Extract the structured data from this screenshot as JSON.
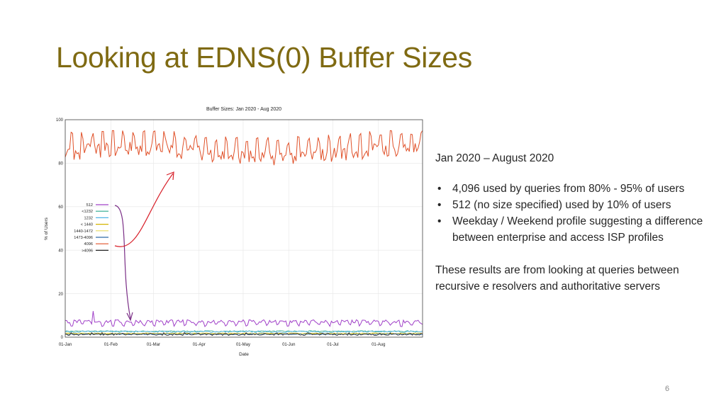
{
  "slide": {
    "title": "Looking at EDNS(0) Buffer Sizes",
    "page_number": "6",
    "subtitle": "Jan 2020 – August 2020",
    "bullets": [
      "4,096 used by queries from 80% - 95% of users",
      "512 (no size specified) used by 10% of users",
      "Weekday / Weekend profile suggesting a difference between enterprise and access ISP profiles"
    ],
    "note": "These results are from looking at queries between recursive e resolvers and authoritative servers"
  },
  "chart_data": {
    "type": "line",
    "title": "Buffer Sizes: Jan 2020 - Aug 2020",
    "xlabel": "Date",
    "ylabel": "% of Users",
    "x_start": "2020-01-01",
    "x_end": "2020-08-31",
    "xlim_days": [
      0,
      243
    ],
    "ylim": [
      0,
      100
    ],
    "yticks": [
      0,
      20,
      40,
      60,
      80,
      100
    ],
    "xticks": [
      {
        "label": "01-Jan",
        "day": 0
      },
      {
        "label": "01-Feb",
        "day": 31
      },
      {
        "label": "01-Mar",
        "day": 60
      },
      {
        "label": "01-Apr",
        "day": 91
      },
      {
        "label": "01-May",
        "day": 121
      },
      {
        "label": "01-Jun",
        "day": 152
      },
      {
        "label": "01-Jul",
        "day": 182
      },
      {
        "label": "01-Aug",
        "day": 213
      }
    ],
    "grid": true,
    "legend_position": "left-middle",
    "series": [
      {
        "name": "512",
        "color": "#a040c8",
        "approx_range": [
          5,
          9
        ]
      },
      {
        "name": "<1232",
        "color": "#2aa88c",
        "approx_range": [
          2,
          3
        ]
      },
      {
        "name": "1232",
        "color": "#50b4e6",
        "approx_range": [
          2,
          3
        ]
      },
      {
        "name": "< 1440",
        "color": "#d4b400",
        "approx_range": [
          1,
          2
        ]
      },
      {
        "name": "1440-1472",
        "color": "#e8dc60",
        "approx_range": [
          1,
          2
        ]
      },
      {
        "name": "1473-4096",
        "color": "#2e6aa8",
        "approx_range": [
          1,
          2
        ]
      },
      {
        "name": "4096",
        "color": "#e05028",
        "approx_range": [
          78,
          95
        ]
      },
      {
        "name": ">4096",
        "color": "#222222",
        "approx_range": [
          0,
          2
        ]
      }
    ]
  }
}
